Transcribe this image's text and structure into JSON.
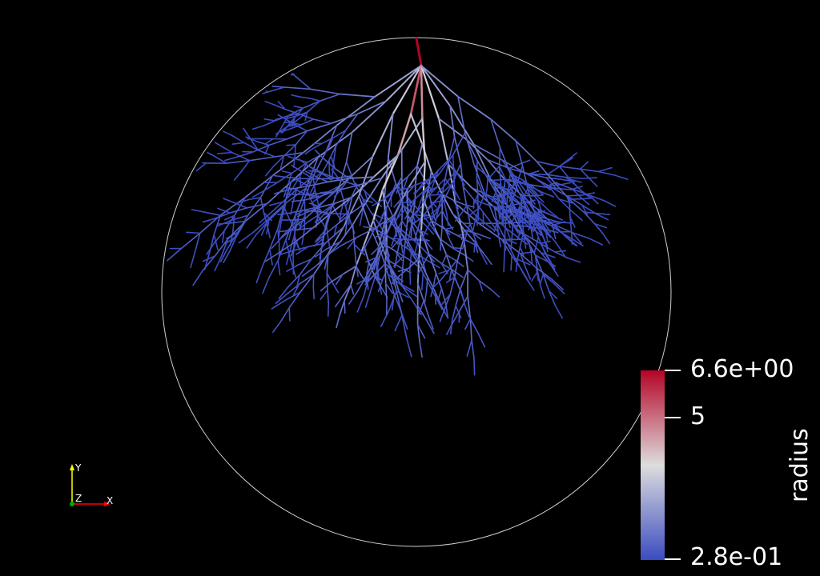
{
  "colorbar": {
    "title": "radius",
    "max_label": "6.6e+00",
    "mid_label": "5",
    "min_label": "2.8e-01",
    "min": 0.28,
    "max": 6.6,
    "mid": 5,
    "color_low": "#3b4cc0",
    "color_mid": "#dddddd",
    "color_high": "#b40426"
  },
  "orientation_axes": {
    "y_label": "Y",
    "x_label": "X",
    "z_label": "Z",
    "y_color": "#ffff00",
    "x_color": "#ff0000",
    "z_color": "#00ff00"
  },
  "scene": {
    "boundary_color": "#ffffff",
    "background": "#000000"
  }
}
